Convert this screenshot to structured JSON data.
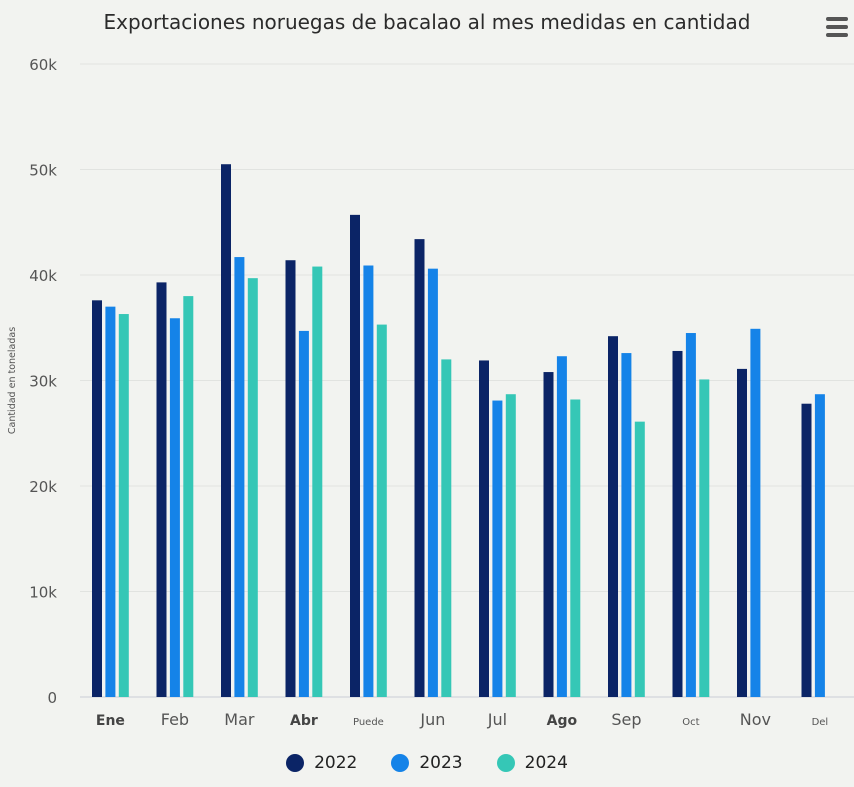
{
  "chart_data": {
    "type": "bar",
    "title": "Exportaciones noruegas de bacalao al mes medidas en cantidad",
    "ylabel": "Cantidad en toneladas",
    "xlabel": "",
    "categories": [
      "Ene",
      "Feb",
      "Mar",
      "Abr",
      "Puede",
      "Jun",
      "Jul",
      "Ago",
      "Sep",
      "Oct",
      "Nov",
      "Del"
    ],
    "series": [
      {
        "name": "2022",
        "color": "#0b2466",
        "values": [
          37600,
          39300,
          50500,
          41400,
          45700,
          43400,
          31900,
          30800,
          34200,
          32800,
          31100,
          27800
        ]
      },
      {
        "name": "2023",
        "color": "#1583e8",
        "values": [
          37000,
          35900,
          41700,
          34700,
          40900,
          40600,
          28100,
          32300,
          32600,
          34500,
          34900,
          28700
        ]
      },
      {
        "name": "2024",
        "color": "#35c7b6",
        "values": [
          36300,
          38000,
          39700,
          40800,
          35300,
          32000,
          28700,
          28200,
          26100,
          30100,
          null,
          null
        ]
      }
    ],
    "ylim": [
      0,
      60000
    ],
    "yticks": [
      "0",
      "10k",
      "20k",
      "30k",
      "40k",
      "50k",
      "60k"
    ],
    "grid": true,
    "legend": "bottom"
  },
  "menu": {
    "icon": "hamburger-menu-icon"
  }
}
